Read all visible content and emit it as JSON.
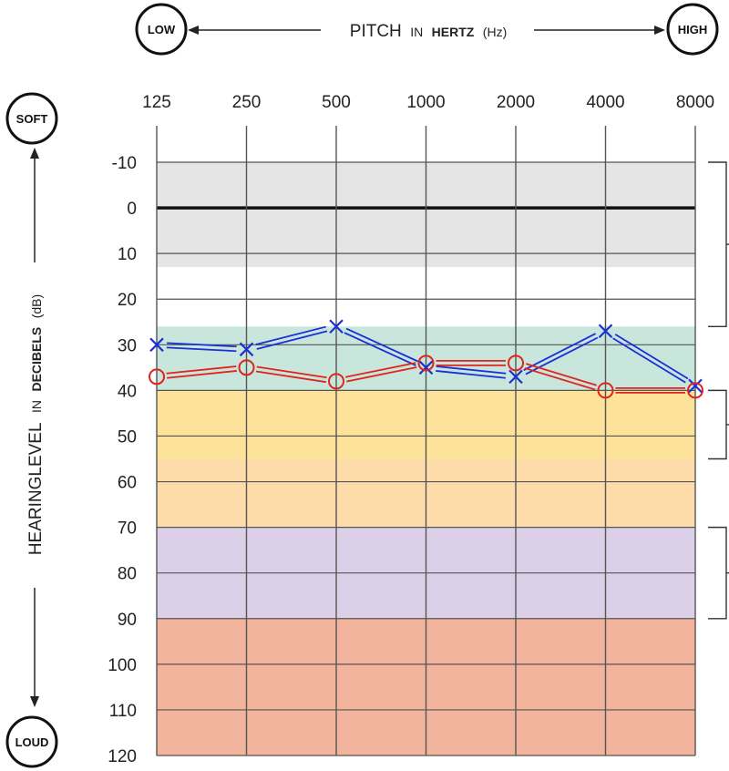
{
  "chart_data": {
    "type": "line",
    "x_axis": {
      "title": "PITCH",
      "title_prefix": "PITCH",
      "title_in": "IN",
      "title_bold": "HERTZ",
      "title_unit": "(Hz)",
      "left_end_label": "LOW",
      "right_end_label": "HIGH",
      "categories": [
        "125",
        "250",
        "500",
        "1000",
        "2000",
        "4000",
        "8000"
      ]
    },
    "y_axis": {
      "title_main": "HEARINGLEVEL",
      "title_in": "IN",
      "title_bold": "DECIBELS",
      "title_unit": "(dB)",
      "top_end_label": "SOFT",
      "bottom_end_label": "LOUD",
      "ticks": [
        "-10",
        "0",
        "10",
        "20",
        "30",
        "40",
        "50",
        "60",
        "70",
        "80",
        "90",
        "100",
        "110",
        "120"
      ],
      "range": [
        -10,
        120
      ],
      "inverted": true
    },
    "bands": [
      {
        "from": -10,
        "to": 13,
        "color": "#e5e5e5"
      },
      {
        "from": 13,
        "to": 26,
        "color": "#ffffff"
      },
      {
        "from": 26,
        "to": 40,
        "color": "#c9e6dc"
      },
      {
        "from": 40,
        "to": 55,
        "color": "#fde399"
      },
      {
        "from": 55,
        "to": 70,
        "color": "#fddcaa"
      },
      {
        "from": 70,
        "to": 90,
        "color": "#dcd0e8"
      },
      {
        "from": 90,
        "to": 120,
        "color": "#f2b49d"
      }
    ],
    "series": [
      {
        "marker": "x",
        "color": "#1a2fd6",
        "values": [
          30,
          31,
          26,
          35,
          37,
          27,
          39
        ]
      },
      {
        "marker": "o",
        "color": "#e0231c",
        "values": [
          37,
          35,
          38,
          34,
          34,
          40,
          40
        ]
      }
    ],
    "grid": true
  }
}
